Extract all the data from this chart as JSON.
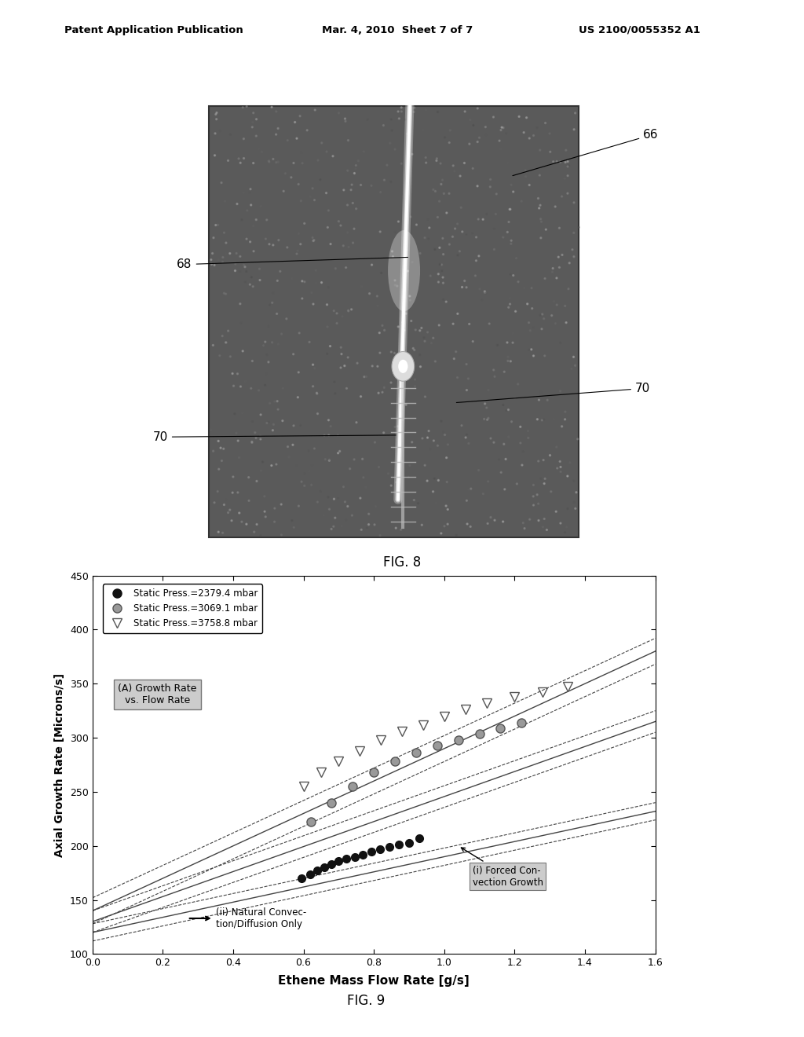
{
  "header_left": "Patent Application Publication",
  "header_center": "Mar. 4, 2010  Sheet 7 of 7",
  "header_right": "US 2100/0055352 A1",
  "fig8_label": "FIG. 8",
  "fig9_label": "FIG. 9",
  "ylabel": "Axial Growth Rate [Microns/s]",
  "xlabel": "Ethene Mass Flow Rate [g/s]",
  "xlim": [
    0.0,
    1.6
  ],
  "ylim": [
    100,
    450
  ],
  "xticks": [
    0.0,
    0.2,
    0.4,
    0.6,
    0.8,
    1.0,
    1.2,
    1.4,
    1.6
  ],
  "yticks": [
    100,
    150,
    200,
    250,
    300,
    350,
    400,
    450
  ],
  "series1_x": [
    0.595,
    0.618,
    0.638,
    0.658,
    0.678,
    0.7,
    0.722,
    0.745,
    0.768,
    0.792,
    0.818,
    0.845,
    0.872,
    0.9,
    0.93
  ],
  "series1_y": [
    170,
    174,
    177,
    180,
    183,
    186,
    188,
    190,
    192,
    195,
    197,
    199,
    201,
    203,
    207
  ],
  "series2_x": [
    0.62,
    0.68,
    0.74,
    0.8,
    0.86,
    0.92,
    0.98,
    1.04,
    1.1,
    1.16,
    1.22
  ],
  "series2_y": [
    222,
    240,
    255,
    268,
    278,
    286,
    293,
    298,
    304,
    309,
    314
  ],
  "series3_x": [
    0.6,
    0.65,
    0.7,
    0.76,
    0.82,
    0.88,
    0.94,
    1.0,
    1.06,
    1.12,
    1.2,
    1.28,
    1.35
  ],
  "series3_y": [
    255,
    268,
    278,
    288,
    298,
    306,
    312,
    320,
    326,
    332,
    338,
    342,
    347
  ],
  "annotation_A_text": "(A) Growth Rate\nvs. Flow Rate",
  "annotation_i_text": "(i) Forced Con-\nvection Growth",
  "annotation_ii_text": "(ii) Natural Convec-\ntion/Diffusion Only"
}
